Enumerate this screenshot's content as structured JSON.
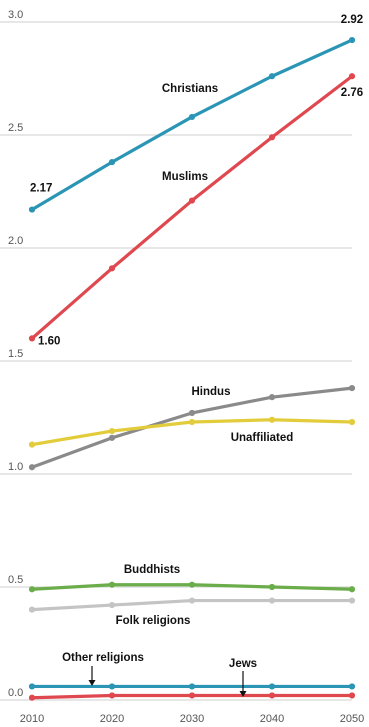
{
  "chart_data": {
    "type": "line",
    "title": "",
    "xlabel": "",
    "ylabel": "",
    "x": [
      2010,
      2020,
      2030,
      2040,
      2050
    ],
    "ylim": [
      0.0,
      3.0
    ],
    "yticks": [
      "3.0",
      "2.5",
      "2.0",
      "1.5",
      "1.0",
      "0.5",
      "0.0"
    ],
    "xticks": [
      "2010",
      "2020",
      "2030",
      "2040",
      "2050"
    ],
    "grid": true,
    "legend": "none (series labeled directly on lines)",
    "series": [
      {
        "name": "Christians",
        "color": "#2a95b5",
        "values": [
          2.17,
          2.38,
          2.58,
          2.76,
          2.92
        ]
      },
      {
        "name": "Muslims",
        "color": "#e0484f",
        "values": [
          1.6,
          1.91,
          2.21,
          2.49,
          2.76
        ]
      },
      {
        "name": "Hindus",
        "color": "#8a8a8a",
        "values": [
          1.03,
          1.16,
          1.27,
          1.34,
          1.38
        ]
      },
      {
        "name": "Unaffiliated",
        "color": "#e3cc3b",
        "values": [
          1.13,
          1.19,
          1.23,
          1.24,
          1.23
        ]
      },
      {
        "name": "Buddhists",
        "color": "#6aad4a",
        "values": [
          0.49,
          0.51,
          0.51,
          0.5,
          0.49
        ]
      },
      {
        "name": "Folk religions",
        "color": "#c4c4c4",
        "values": [
          0.4,
          0.42,
          0.44,
          0.44,
          0.44
        ]
      },
      {
        "name": "Other religions",
        "color": "#2a95b5",
        "values": [
          0.06,
          0.06,
          0.06,
          0.06,
          0.06
        ]
      },
      {
        "name": "Jews",
        "color": "#e0484f",
        "values": [
          0.01,
          0.02,
          0.02,
          0.02,
          0.02
        ]
      }
    ],
    "value_labels": [
      {
        "series": "Christians",
        "x": 2010,
        "text": "2.17"
      },
      {
        "series": "Christians",
        "x": 2050,
        "text": "2.92"
      },
      {
        "series": "Muslims",
        "x": 2010,
        "text": "1.60"
      },
      {
        "series": "Muslims",
        "x": 2050,
        "text": "2.76"
      }
    ]
  }
}
